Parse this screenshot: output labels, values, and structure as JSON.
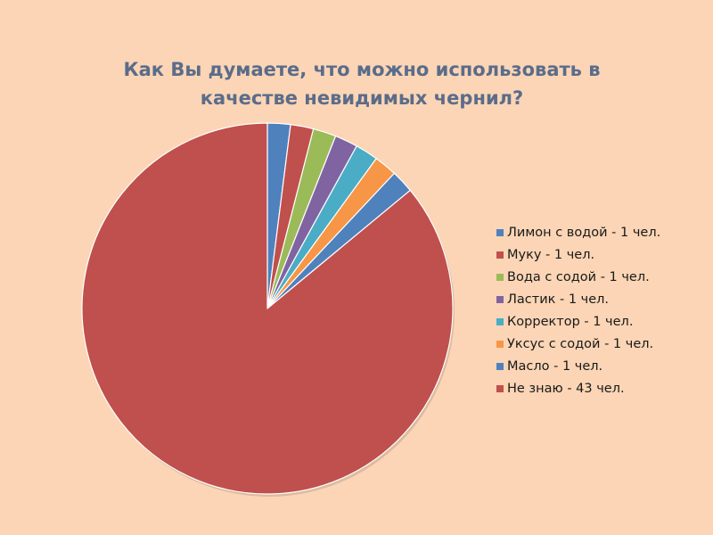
{
  "chart_data": {
    "type": "pie",
    "title": "Как Вы думаете, что можно использовать в качестве невидимых чернил?",
    "title_lines": [
      "Как Вы думаете, что можно использовать в",
      "качестве невидимых чернил?"
    ],
    "legend_position": "right",
    "series": [
      {
        "name": "Лимон с водой - 1 чел.",
        "value": 1,
        "color": "#4F81BD"
      },
      {
        "name": "Муку - 1 чел.",
        "value": 1,
        "color": "#C0504D"
      },
      {
        "name": "Вода с содой - 1 чел.",
        "value": 1,
        "color": "#9BBB59"
      },
      {
        "name": "Ластик - 1 чел.",
        "value": 1,
        "color": "#8064A2"
      },
      {
        "name": "Корректор - 1 чел.",
        "value": 1,
        "color": "#4BACC6"
      },
      {
        "name": "Уксус с содой - 1 чел.",
        "value": 1,
        "color": "#F79646"
      },
      {
        "name": "Масло - 1 чел.",
        "value": 1,
        "color": "#4F81BD"
      },
      {
        "name": "Не знаю - 43 чел.",
        "value": 43,
        "color": "#C0504D"
      }
    ]
  }
}
